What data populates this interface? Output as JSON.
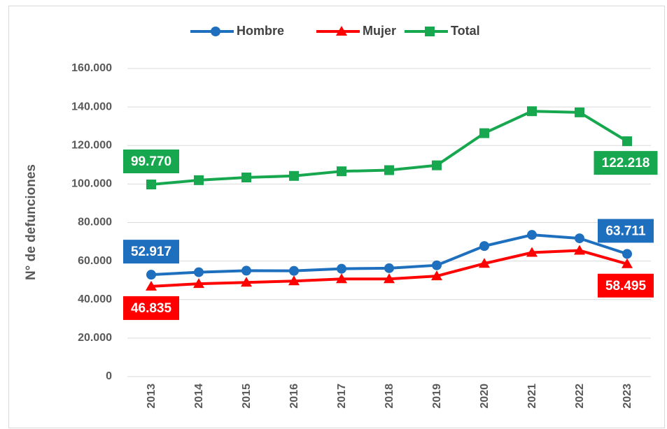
{
  "chart_data": {
    "type": "line",
    "ylabel": "N° de defunciones",
    "categories": [
      "2013",
      "2014",
      "2015",
      "2016",
      "2017",
      "2018",
      "2019",
      "2020",
      "2021",
      "2022",
      "2023"
    ],
    "series": [
      {
        "name": "Hombre",
        "color": "#1f6fbf",
        "marker": "circle",
        "values": [
          52917,
          54200,
          55000,
          54900,
          56000,
          56300,
          57800,
          67800,
          73600,
          71800,
          63711
        ],
        "value_labels": [
          "52.917",
          null,
          null,
          null,
          null,
          null,
          null,
          null,
          null,
          null,
          "63.711"
        ]
      },
      {
        "name": "Mujer",
        "color": "#ff0000",
        "marker": "triangle",
        "values": [
          46835,
          48200,
          48900,
          49600,
          50700,
          50700,
          52200,
          58700,
          64400,
          65500,
          58495
        ],
        "value_labels": [
          "46.835",
          null,
          null,
          null,
          null,
          null,
          null,
          null,
          null,
          null,
          "58.495"
        ]
      },
      {
        "name": "Total",
        "color": "#17a84f",
        "marker": "square",
        "values": [
          99770,
          102000,
          103400,
          104200,
          106600,
          107200,
          109700,
          126400,
          137800,
          137200,
          122218
        ],
        "value_labels": [
          "99.770",
          null,
          null,
          null,
          null,
          null,
          null,
          null,
          null,
          null,
          "122.218"
        ]
      }
    ],
    "ylim": [
      0,
      160000
    ],
    "yticks": [
      0,
      {
        "value": 20000,
        "label": "20.000"
      },
      {
        "value": 40000,
        "label": "40.000"
      },
      {
        "value": 60000,
        "label": "60.000"
      },
      {
        "value": 80000,
        "label": "80.000"
      },
      {
        "value": 100000,
        "label": "100.000"
      },
      {
        "value": 120000,
        "label": "120.000"
      },
      {
        "value": 140000,
        "label": "140.000"
      },
      {
        "value": 160000,
        "label": "160.000"
      }
    ],
    "grid": true,
    "legend": "top"
  }
}
